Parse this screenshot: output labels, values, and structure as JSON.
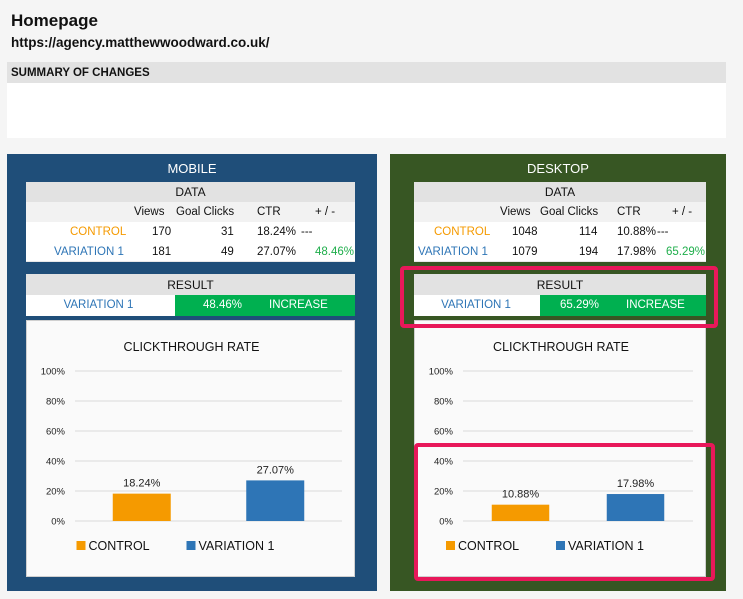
{
  "page": {
    "title": "Homepage",
    "url": "https://agency.matthewwoodward.co.uk/",
    "summary_label": "SUMMARY OF CHANGES"
  },
  "panels": {
    "mobile": {
      "title": "MOBILE",
      "data_label": "DATA",
      "columns": [
        "Views",
        "Goal Clicks",
        "CTR",
        "+ / -"
      ],
      "control": {
        "label": "CONTROL",
        "views": "170",
        "goal_clicks": "31",
        "ctr": "18.24%",
        "diff": "---"
      },
      "variation": {
        "label": "VARIATION 1",
        "views": "181",
        "goal_clicks": "49",
        "ctr": "27.07%",
        "diff": "48.46%"
      },
      "result_label": "RESULT",
      "result": {
        "variant": "VARIATION 1",
        "change": "48.46%",
        "verdict": "INCREASE"
      }
    },
    "desktop": {
      "title": "DESKTOP",
      "data_label": "DATA",
      "columns": [
        "Views",
        "Goal Clicks",
        "CTR",
        "+ / -"
      ],
      "control": {
        "label": "CONTROL",
        "views": "1048",
        "goal_clicks": "114",
        "ctr": "10.88%",
        "diff": "---"
      },
      "variation": {
        "label": "VARIATION 1",
        "views": "1079",
        "goal_clicks": "194",
        "ctr": "17.98%",
        "diff": "65.29%"
      },
      "result_label": "RESULT",
      "result": {
        "variant": "VARIATION 1",
        "change": "65.29%",
        "verdict": "INCREASE"
      }
    }
  },
  "colors": {
    "mobile_panel": "#1f4e79",
    "desktop_panel": "#375623",
    "control": "#f59a00",
    "variation": "#2e75b6",
    "increase": "#00b050",
    "highlight": "#e8185a"
  },
  "chart_data": [
    {
      "type": "bar",
      "title": "CLICKTHROUGH RATE",
      "categories": [
        "CONTROL",
        "VARIATION 1"
      ],
      "values": [
        18.24,
        27.07
      ],
      "value_labels": [
        "18.24%",
        "27.07%"
      ],
      "colors": [
        "#f59a00",
        "#2e75b6"
      ],
      "ylim": [
        0,
        100
      ],
      "yticks": [
        "0%",
        "20%",
        "40%",
        "60%",
        "80%",
        "100%"
      ],
      "legend": "bottom",
      "grid": true
    },
    {
      "type": "bar",
      "title": "CLICKTHROUGH RATE",
      "categories": [
        "CONTROL",
        "VARIATION 1"
      ],
      "values": [
        10.88,
        17.98
      ],
      "value_labels": [
        "10.88%",
        "17.98%"
      ],
      "colors": [
        "#f59a00",
        "#2e75b6"
      ],
      "ylim": [
        0,
        100
      ],
      "yticks": [
        "0%",
        "20%",
        "40%",
        "60%",
        "80%",
        "100%"
      ],
      "legend": "bottom",
      "grid": true
    }
  ]
}
